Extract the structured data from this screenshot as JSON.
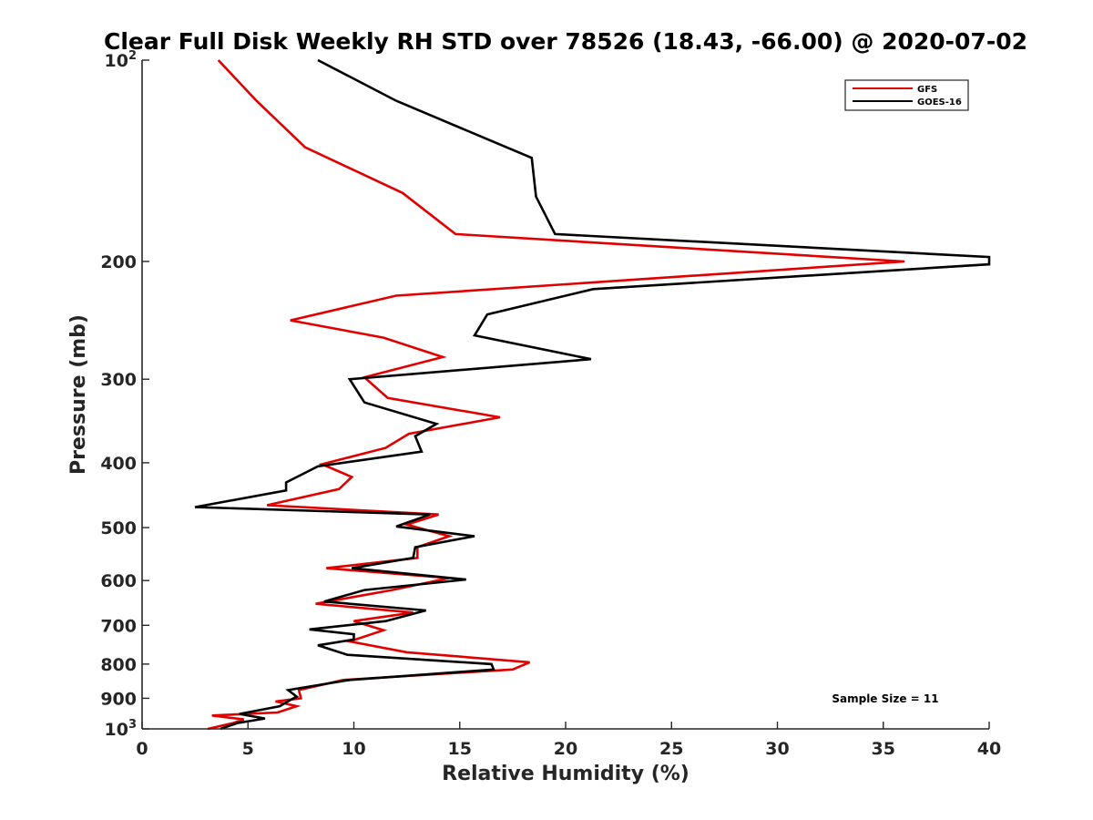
{
  "chart_data": {
    "type": "line",
    "title": "Clear Full Disk Weekly RH STD over 78526 (18.43, -66.00) @ 2020-07-02",
    "xlabel": "Relative Humidity (%)",
    "ylabel": "Pressure (mb)",
    "xlim": [
      0,
      40
    ],
    "ylim": [
      100,
      1000
    ],
    "y_scale": "log",
    "y_reversed": true,
    "xticks": [
      0,
      5,
      10,
      15,
      20,
      25,
      30,
      35,
      40
    ],
    "yticks": [
      {
        "value": 100,
        "base": "10",
        "exp": "2"
      },
      {
        "value": 200,
        "label": "200"
      },
      {
        "value": 300,
        "label": "300"
      },
      {
        "value": 400,
        "label": "400"
      },
      {
        "value": 500,
        "label": "500"
      },
      {
        "value": 600,
        "label": "600"
      },
      {
        "value": 700,
        "label": "700"
      },
      {
        "value": 800,
        "label": "800"
      },
      {
        "value": 900,
        "label": "900"
      },
      {
        "value": 1000,
        "base": "10",
        "exp": "3"
      }
    ],
    "grid": false,
    "legend_position": "top-right",
    "annotation": "Sample Size = 11",
    "series": [
      {
        "name": "GFS",
        "color": "#e00000",
        "points": [
          [
            3.6,
            100
          ],
          [
            5.4,
            115
          ],
          [
            7.7,
            135
          ],
          [
            12.3,
            158
          ],
          [
            14.8,
            182
          ],
          [
            36.0,
            200
          ],
          [
            12.0,
            225
          ],
          [
            7.0,
            245
          ],
          [
            11.4,
            260
          ],
          [
            14.2,
            278
          ],
          [
            10.5,
            298
          ],
          [
            11.6,
            320
          ],
          [
            16.9,
            342
          ],
          [
            12.6,
            362
          ],
          [
            11.5,
            380
          ],
          [
            8.5,
            402
          ],
          [
            9.9,
            420
          ],
          [
            9.3,
            438
          ],
          [
            5.9,
            463
          ],
          [
            14.0,
            478
          ],
          [
            12.5,
            495
          ],
          [
            14.5,
            515
          ],
          [
            13.0,
            535
          ],
          [
            13.0,
            555
          ],
          [
            8.7,
            575
          ],
          [
            14.5,
            595
          ],
          [
            11.8,
            620
          ],
          [
            8.2,
            650
          ],
          [
            12.8,
            670
          ],
          [
            10.0,
            690
          ],
          [
            11.4,
            712
          ],
          [
            9.8,
            740
          ],
          [
            12.5,
            768
          ],
          [
            18.3,
            795
          ],
          [
            17.5,
            815
          ],
          [
            9.5,
            845
          ],
          [
            7.4,
            875
          ],
          [
            7.5,
            900
          ],
          [
            6.3,
            910
          ],
          [
            7.3,
            925
          ],
          [
            6.4,
            945
          ],
          [
            3.3,
            955
          ],
          [
            4.8,
            968
          ],
          [
            4.3,
            980
          ],
          [
            3.1,
            1000
          ]
        ]
      },
      {
        "name": "GOES-16",
        "color": "#000000",
        "points": [
          [
            8.3,
            100
          ],
          [
            12.0,
            115
          ],
          [
            18.4,
            140
          ],
          [
            18.6,
            160
          ],
          [
            19.5,
            182
          ],
          [
            40.0,
            197
          ],
          [
            40.0,
            202
          ],
          [
            21.3,
            220
          ],
          [
            16.3,
            240
          ],
          [
            15.7,
            258
          ],
          [
            21.2,
            280
          ],
          [
            9.8,
            300
          ],
          [
            10.5,
            325
          ],
          [
            13.9,
            350
          ],
          [
            12.9,
            365
          ],
          [
            13.2,
            385
          ],
          [
            8.3,
            405
          ],
          [
            6.8,
            428
          ],
          [
            6.8,
            440
          ],
          [
            2.5,
            466
          ],
          [
            13.6,
            478
          ],
          [
            12.0,
            498
          ],
          [
            15.7,
            515
          ],
          [
            12.9,
            535
          ],
          [
            12.8,
            555
          ],
          [
            9.9,
            575
          ],
          [
            15.3,
            598
          ],
          [
            10.5,
            620
          ],
          [
            8.6,
            645
          ],
          [
            13.4,
            665
          ],
          [
            11.5,
            690
          ],
          [
            7.9,
            710
          ],
          [
            10.0,
            722
          ],
          [
            10.0,
            735
          ],
          [
            8.3,
            750
          ],
          [
            9.7,
            775
          ],
          [
            16.5,
            800
          ],
          [
            16.6,
            815
          ],
          [
            9.8,
            845
          ],
          [
            6.9,
            875
          ],
          [
            7.3,
            895
          ],
          [
            7.0,
            905
          ],
          [
            6.5,
            925
          ],
          [
            4.6,
            950
          ],
          [
            5.8,
            965
          ],
          [
            4.5,
            980
          ],
          [
            3.7,
            1000
          ]
        ]
      }
    ]
  }
}
